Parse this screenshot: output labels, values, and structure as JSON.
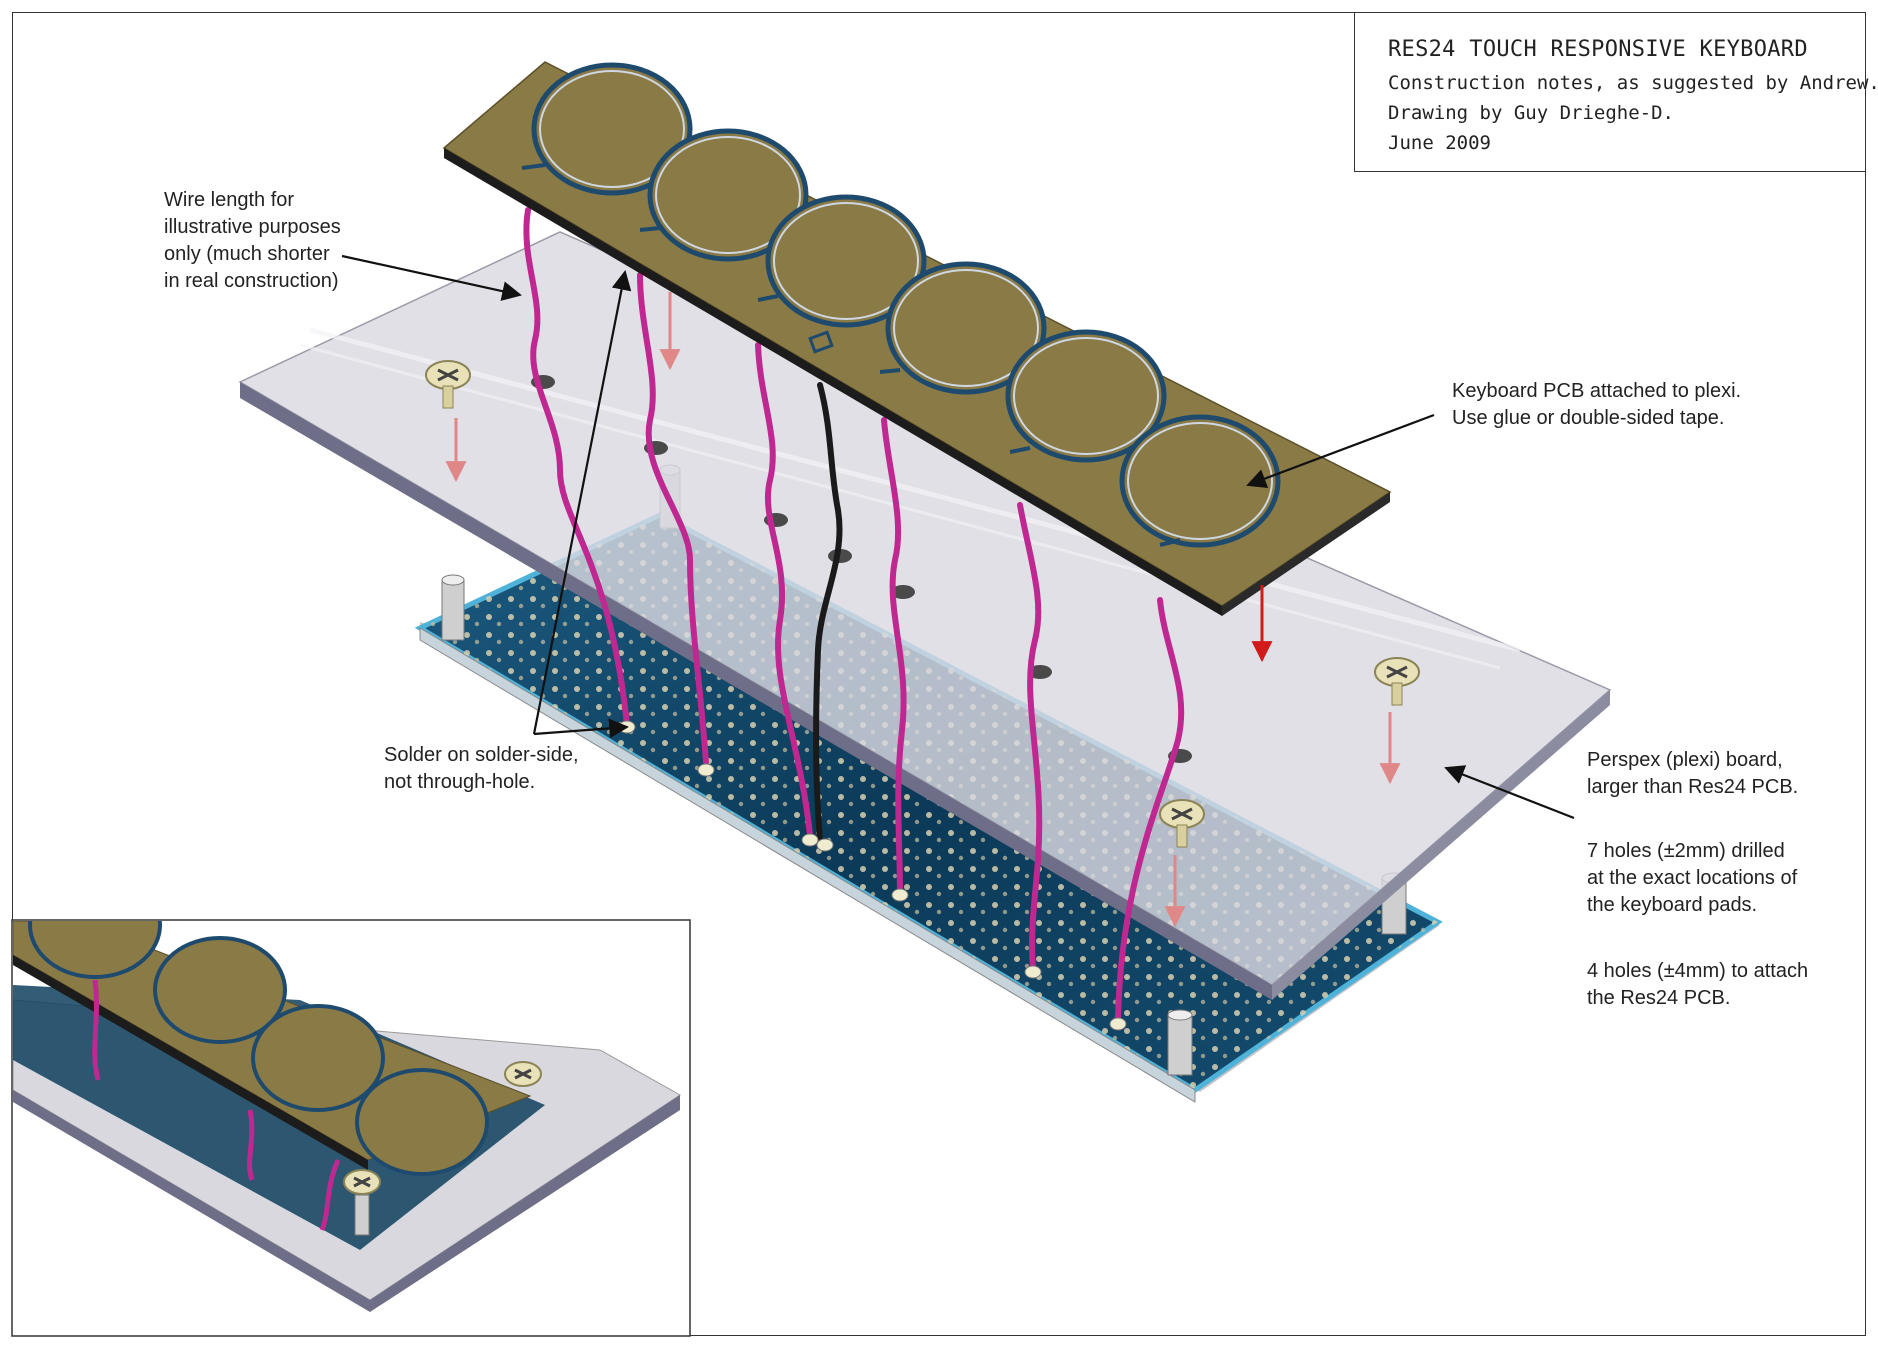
{
  "title": {
    "heading": "RES24 TOUCH RESPONSIVE KEYBOARD",
    "line1": "Construction notes, as suggested by Andrew.",
    "line2": "Drawing by Guy Drieghe-D.",
    "line3": "June 2009"
  },
  "notes": {
    "wire_length": "Wire length for\nillustrative purposes\nonly (much shorter\nin real construction)",
    "solder": "Solder on solder-side,\nnot through-hole.",
    "keyboard_pcb": "Keyboard PCB attached to plexi.\nUse glue or double-sided tape.",
    "perspex": "Perspex (plexi) board,\nlarger than Res24 PCB.",
    "holes_small": "7 holes (±2mm) drilled\nat the exact locations of\nthe keyboard pads.",
    "holes_large": "4 holes (±4mm) to attach\nthe Res24 PCB."
  },
  "colors": {
    "keyboard_pcb": "#8a7a46",
    "pad_ring": "#1e4a6e",
    "plexi": "#d8d8de",
    "res24_pcb": "#0f3f5e",
    "wire": "#c02891",
    "wire_dark": "#1a1a1a",
    "arrow_red": "#d11a1a"
  },
  "icons": [
    "screw-icon",
    "standoff-icon",
    "pad-icon"
  ]
}
